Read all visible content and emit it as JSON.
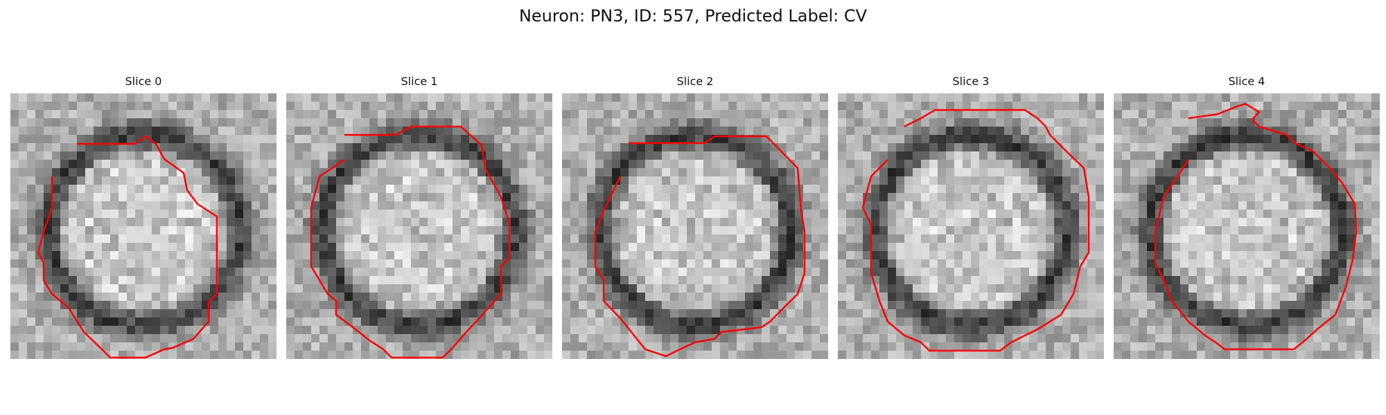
{
  "title": "Neuron: PN3, ID: 557, Predicted Label: CV",
  "contour_color": "#ff0000",
  "panels": [
    {
      "title": "Slice 0"
    },
    {
      "title": "Slice 1"
    },
    {
      "title": "Slice 2"
    },
    {
      "title": "Slice 3"
    },
    {
      "title": "Slice 4"
    }
  ]
}
